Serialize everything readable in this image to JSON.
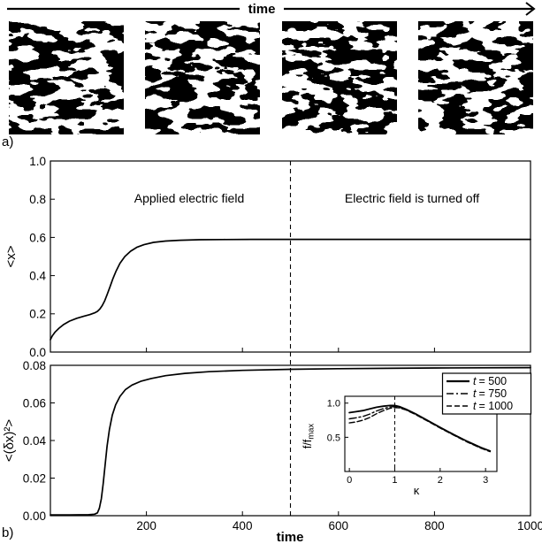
{
  "figure": {
    "time_arrow_label": "time",
    "panel_a_label": "a)",
    "panel_b_label": "b)"
  },
  "chart_data": [
    {
      "type": "line",
      "title": "",
      "ylabel": "<x>",
      "xlabel": "time",
      "xlim": [
        0,
        1000
      ],
      "ylim": [
        0.0,
        1.0
      ],
      "xticks": [
        "200",
        "400",
        "600",
        "800",
        "1000"
      ],
      "yticks": [
        "0.0",
        "0.2",
        "0.4",
        "0.6",
        "0.8",
        "1.0"
      ],
      "grid": false,
      "x_tick_labels_shown": false,
      "vline_x": 500,
      "vline_style": "dashed",
      "annotations": [
        {
          "text": "Applied electric field"
        },
        {
          "text": "Electric field is turned off"
        }
      ],
      "series": [
        {
          "key": "mean-x",
          "name": "<x>",
          "style": "solid",
          "x": [
            0,
            4,
            10,
            18,
            28,
            40,
            55,
            70,
            82,
            92,
            98,
            103,
            108,
            113,
            118,
            124,
            130,
            137,
            145,
            155,
            167,
            180,
            195,
            215,
            240,
            270,
            310,
            360,
            420,
            500,
            600,
            700,
            800,
            900,
            1000
          ],
          "y": [
            0.065,
            0.085,
            0.105,
            0.125,
            0.145,
            0.162,
            0.177,
            0.188,
            0.196,
            0.205,
            0.213,
            0.225,
            0.243,
            0.268,
            0.3,
            0.34,
            0.383,
            0.425,
            0.465,
            0.5,
            0.528,
            0.548,
            0.562,
            0.574,
            0.581,
            0.585,
            0.588,
            0.589,
            0.59,
            0.59,
            0.59,
            0.59,
            0.59,
            0.59,
            0.59
          ]
        }
      ]
    },
    {
      "type": "line",
      "title": "",
      "ylabel": "<(δx)²>",
      "xlabel": "time",
      "xlim": [
        0,
        1000
      ],
      "ylim": [
        0.0,
        0.08
      ],
      "xticks": [
        "200",
        "400",
        "600",
        "800",
        "1000"
      ],
      "yticks": [
        "0.00",
        "0.02",
        "0.04",
        "0.06",
        "0.08"
      ],
      "grid": false,
      "x_tick_labels_shown": true,
      "vline_x": 500,
      "vline_style": "dashed",
      "series": [
        {
          "key": "variance",
          "name": "<(δx)²>",
          "style": "solid",
          "x": [
            0,
            40,
            80,
            92,
            98,
            102,
            106,
            110,
            114,
            118,
            123,
            129,
            136,
            145,
            156,
            170,
            188,
            210,
            240,
            280,
            330,
            400,
            500,
            600,
            700,
            800,
            900,
            1000
          ],
          "y": [
            0.0004,
            0.0004,
            0.0005,
            0.0008,
            0.0015,
            0.004,
            0.009,
            0.017,
            0.027,
            0.037,
            0.046,
            0.0535,
            0.059,
            0.0635,
            0.067,
            0.0695,
            0.0715,
            0.073,
            0.0745,
            0.0757,
            0.0766,
            0.0773,
            0.0779,
            0.0782,
            0.0784,
            0.0786,
            0.0787,
            0.0788
          ]
        }
      ]
    },
    {
      "type": "line",
      "title": "",
      "ylabel": "f/fmax",
      "ylabel_parts": {
        "main": "f/f",
        "sub": "max"
      },
      "xlabel": "κ",
      "xlim": [
        -0.1,
        3.25
      ],
      "ylim": [
        0.0,
        1.1
      ],
      "xticks": [
        "0",
        "1",
        "2",
        "3"
      ],
      "yticks": [
        "0.5",
        "1.0"
      ],
      "grid": false,
      "vline_x": 1,
      "vline_style": "dashed",
      "legend_position": "top-right",
      "legend": [
        {
          "label_var": "t",
          "label_rest": "= 500",
          "style": "solid"
        },
        {
          "label_var": "t",
          "label_rest": "= 750",
          "style": "dashdot"
        },
        {
          "label_var": "t",
          "label_rest": "= 1000",
          "style": "dashed"
        }
      ],
      "series": [
        {
          "key": "t-500",
          "name": "t = 500",
          "style": "solid",
          "x": [
            0,
            0.15,
            0.3,
            0.45,
            0.6,
            0.75,
            0.9,
            1.0,
            1.1,
            1.25,
            1.45,
            1.7,
            2.0,
            2.3,
            2.6,
            2.9,
            3.1
          ],
          "y": [
            0.86,
            0.875,
            0.89,
            0.915,
            0.94,
            0.955,
            0.965,
            0.965,
            0.95,
            0.91,
            0.845,
            0.755,
            0.645,
            0.54,
            0.44,
            0.35,
            0.3
          ]
        },
        {
          "key": "t-750",
          "name": "t = 750",
          "style": "dashdot",
          "x": [
            0,
            0.15,
            0.3,
            0.45,
            0.6,
            0.75,
            0.9,
            1.0,
            1.1,
            1.25,
            1.45,
            1.7,
            2.0,
            2.3,
            2.6,
            2.9,
            3.1
          ],
          "y": [
            0.77,
            0.785,
            0.805,
            0.84,
            0.885,
            0.92,
            0.945,
            0.95,
            0.94,
            0.905,
            0.84,
            0.75,
            0.64,
            0.535,
            0.435,
            0.345,
            0.295
          ]
        },
        {
          "key": "t-1000",
          "name": "t = 1000",
          "style": "dashed",
          "x": [
            0,
            0.15,
            0.3,
            0.45,
            0.6,
            0.75,
            0.9,
            1.0,
            1.1,
            1.25,
            1.45,
            1.7,
            2.0,
            2.3,
            2.6,
            2.9,
            3.1
          ],
          "y": [
            0.71,
            0.725,
            0.75,
            0.79,
            0.845,
            0.89,
            0.925,
            0.935,
            0.93,
            0.9,
            0.835,
            0.745,
            0.635,
            0.53,
            0.43,
            0.34,
            0.29
          ]
        }
      ]
    }
  ]
}
